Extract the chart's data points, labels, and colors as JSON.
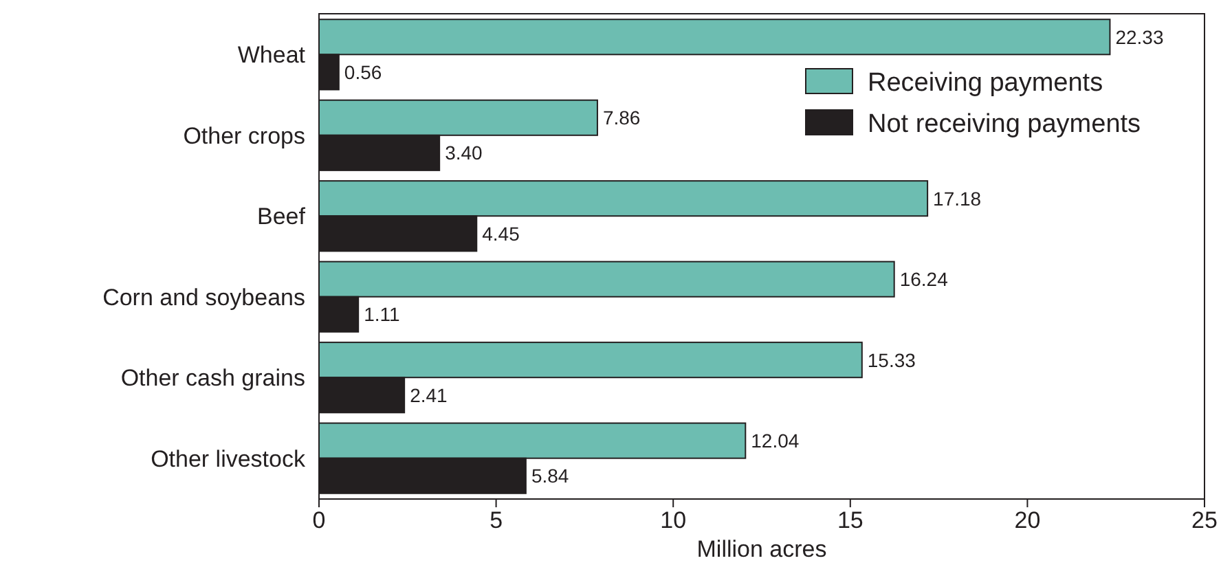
{
  "chart_data": {
    "type": "bar",
    "orientation": "horizontal",
    "xlabel": "Million acres",
    "categories": [
      "Wheat",
      "Other crops",
      "Beef",
      "Corn and soybeans",
      "Other cash grains",
      "Other livestock"
    ],
    "series": [
      {
        "name": "Receiving payments",
        "color": "#6dbdb1",
        "values": [
          22.33,
          7.86,
          17.18,
          16.24,
          15.33,
          12.04
        ]
      },
      {
        "name": "Not receiving payments",
        "color": "#231f20",
        "values": [
          0.56,
          3.4,
          4.45,
          1.11,
          2.41,
          5.84
        ]
      }
    ],
    "value_labels": [
      [
        "22.33",
        "7.86",
        "17.18",
        "16.24",
        "15.33",
        "12.04"
      ],
      [
        "0.56",
        "3.40",
        "4.45",
        "1.11",
        "2.41",
        "5.84"
      ]
    ],
    "xlim": [
      0,
      25
    ],
    "xticks": [
      0,
      5,
      10,
      15,
      20,
      25
    ],
    "grid": false,
    "legend": "top right"
  }
}
